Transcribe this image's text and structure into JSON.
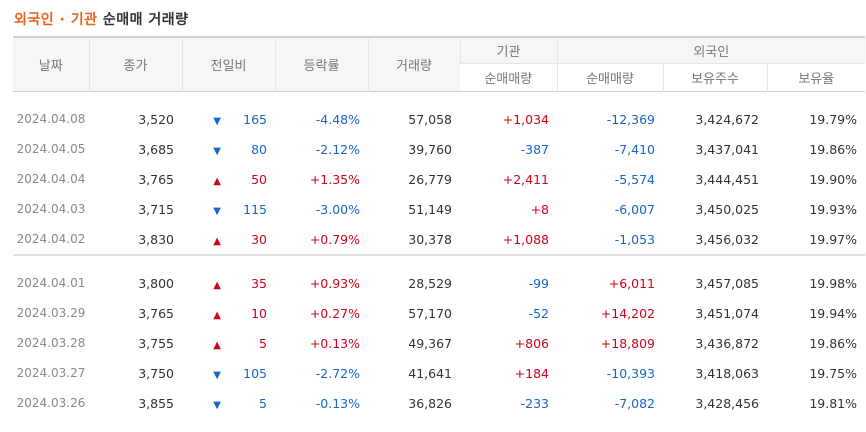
{
  "title": {
    "part1": "외국인 · 기관",
    "part2": "순매매 거래량"
  },
  "headers": {
    "date": "날짜",
    "close": "종가",
    "change": "전일비",
    "rate": "등락률",
    "volume": "거래량",
    "inst_group": "기관",
    "inst_net": "순매매량",
    "foreign_group": "외국인",
    "foreign_net": "순매매량",
    "foreign_hold": "보유주수",
    "foreign_ratio": "보유율"
  },
  "colors": {
    "up": "#d0021b",
    "down": "#1766c9",
    "title_accent": "#e8641b"
  },
  "groups": [
    [
      {
        "date": "2024.04.08",
        "close": "3,520",
        "dir": "down",
        "change": "165",
        "rate": "-4.48%",
        "volume": "57,058",
        "inst": "+1,034",
        "foreign": "-12,369",
        "hold": "3,424,672",
        "ratio": "19.79%"
      },
      {
        "date": "2024.04.05",
        "close": "3,685",
        "dir": "down",
        "change": "80",
        "rate": "-2.12%",
        "volume": "39,760",
        "inst": "-387",
        "foreign": "-7,410",
        "hold": "3,437,041",
        "ratio": "19.86%"
      },
      {
        "date": "2024.04.04",
        "close": "3,765",
        "dir": "up",
        "change": "50",
        "rate": "+1.35%",
        "volume": "26,779",
        "inst": "+2,411",
        "foreign": "-5,574",
        "hold": "3,444,451",
        "ratio": "19.90%"
      },
      {
        "date": "2024.04.03",
        "close": "3,715",
        "dir": "down",
        "change": "115",
        "rate": "-3.00%",
        "volume": "51,149",
        "inst": "+8",
        "foreign": "-6,007",
        "hold": "3,450,025",
        "ratio": "19.93%"
      },
      {
        "date": "2024.04.02",
        "close": "3,830",
        "dir": "up",
        "change": "30",
        "rate": "+0.79%",
        "volume": "30,378",
        "inst": "+1,088",
        "foreign": "-1,053",
        "hold": "3,456,032",
        "ratio": "19.97%"
      }
    ],
    [
      {
        "date": "2024.04.01",
        "close": "3,800",
        "dir": "up",
        "change": "35",
        "rate": "+0.93%",
        "volume": "28,529",
        "inst": "-99",
        "foreign": "+6,011",
        "hold": "3,457,085",
        "ratio": "19.98%"
      },
      {
        "date": "2024.03.29",
        "close": "3,765",
        "dir": "up",
        "change": "10",
        "rate": "+0.27%",
        "volume": "57,170",
        "inst": "-52",
        "foreign": "+14,202",
        "hold": "3,451,074",
        "ratio": "19.94%"
      },
      {
        "date": "2024.03.28",
        "close": "3,755",
        "dir": "up",
        "change": "5",
        "rate": "+0.13%",
        "volume": "49,367",
        "inst": "+806",
        "foreign": "+18,809",
        "hold": "3,436,872",
        "ratio": "19.86%"
      },
      {
        "date": "2024.03.27",
        "close": "3,750",
        "dir": "down",
        "change": "105",
        "rate": "-2.72%",
        "volume": "41,641",
        "inst": "+184",
        "foreign": "-10,393",
        "hold": "3,418,063",
        "ratio": "19.75%"
      },
      {
        "date": "2024.03.26",
        "close": "3,855",
        "dir": "down",
        "change": "5",
        "rate": "-0.13%",
        "volume": "36,826",
        "inst": "-233",
        "foreign": "-7,082",
        "hold": "3,428,456",
        "ratio": "19.81%"
      }
    ]
  ]
}
